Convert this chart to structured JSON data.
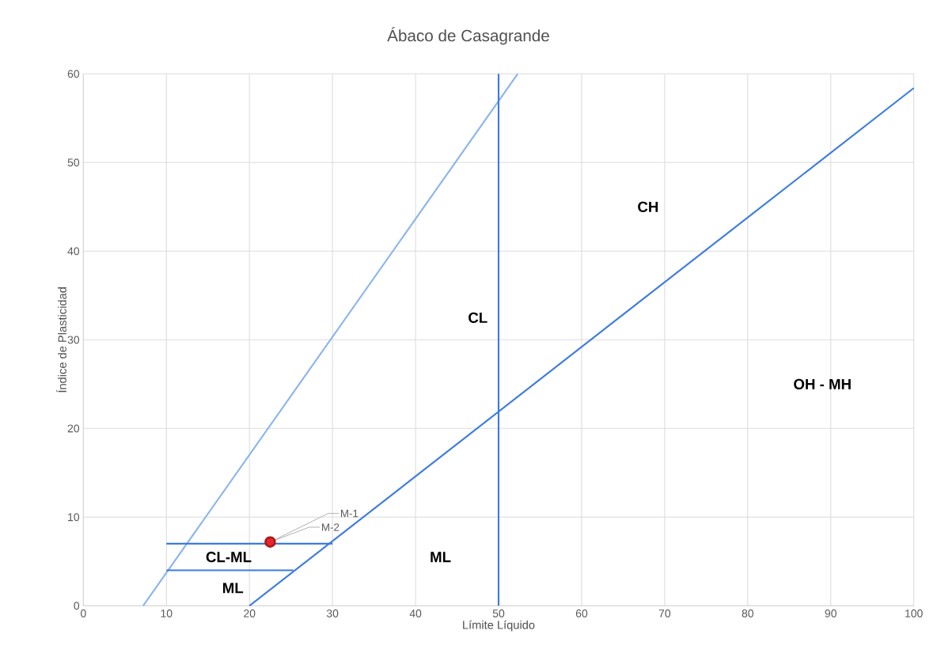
{
  "chart_data": {
    "type": "line",
    "title": "Ábaco de Casagrande",
    "xlabel": "Límite Líquido",
    "ylabel": "Índice de Plasticidad",
    "xlim": [
      0,
      100
    ],
    "ylim": [
      0,
      60
    ],
    "xticks": [
      0,
      10,
      20,
      30,
      40,
      50,
      60,
      70,
      80,
      90,
      100
    ],
    "yticks": [
      0,
      10,
      20,
      30,
      40,
      50,
      60
    ],
    "grid": true,
    "series": [
      {
        "color": "#8ab4f0",
        "marker": "none",
        "x": [
          7.2,
          52.3
        ],
        "values": [
          0,
          60
        ]
      },
      {
        "color": "#3d7be0",
        "marker": "none",
        "x": [
          20,
          100
        ],
        "values": [
          0,
          58.4
        ]
      },
      {
        "color": "#3d7be0",
        "marker": "none",
        "x": [
          50,
          50
        ],
        "values": [
          0,
          60
        ]
      },
      {
        "color": "#3d7be0",
        "marker": "none",
        "x": [
          10,
          30
        ],
        "values": [
          7,
          7
        ]
      },
      {
        "color": "#3d7be0",
        "marker": "none",
        "x": [
          10,
          25.3
        ],
        "values": [
          4,
          4
        ]
      },
      {
        "type": "scatter",
        "name": "M-1",
        "color": "#e8252b",
        "x": [
          22.5
        ],
        "values": [
          7.2
        ],
        "marker": "circle"
      },
      {
        "type": "scatter",
        "name": "M-2",
        "color": "#e8252b",
        "x": [
          22.5
        ],
        "values": [
          7.2
        ],
        "marker": "circle"
      }
    ],
    "annotations": [
      "CH",
      "CL",
      "OH - MH",
      "ML",
      "CL-ML",
      "ML"
    ]
  }
}
